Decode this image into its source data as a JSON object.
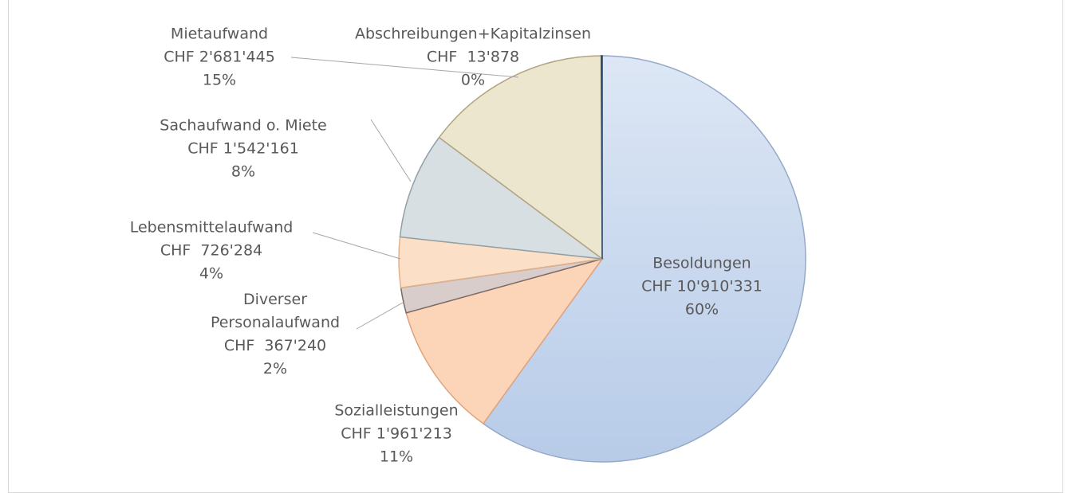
{
  "chart_data": {
    "type": "pie",
    "categories": [
      "Besoldungen",
      "Sozialleistungen",
      "Diverser Personalaufwand",
      "Lebensmittelaufwand",
      "Sachaufwand o. Miete",
      "Mietaufwand",
      "Abschreibungen+Kapitalzinsen"
    ],
    "values": [
      10910331,
      1961213,
      367240,
      726284,
      1542161,
      2681445,
      13878
    ],
    "value_labels": [
      "CHF 10'910'331",
      "CHF 1'961'213",
      "CHF  367'240",
      "CHF  726'284",
      "CHF 1'542'161",
      "CHF 2'681'445",
      "CHF  13'878"
    ],
    "percents": [
      60,
      11,
      2,
      4,
      8,
      15,
      0
    ],
    "percent_labels": [
      "60%",
      "11%",
      "2%",
      "4%",
      "8%",
      "15%",
      "0%"
    ],
    "colors": [
      "#c9d9ef",
      "#fcd5b8",
      "#d8cdca",
      "#fbdfc7",
      "#d8dfe2",
      "#ede6cf",
      "#4a6a8a"
    ]
  }
}
